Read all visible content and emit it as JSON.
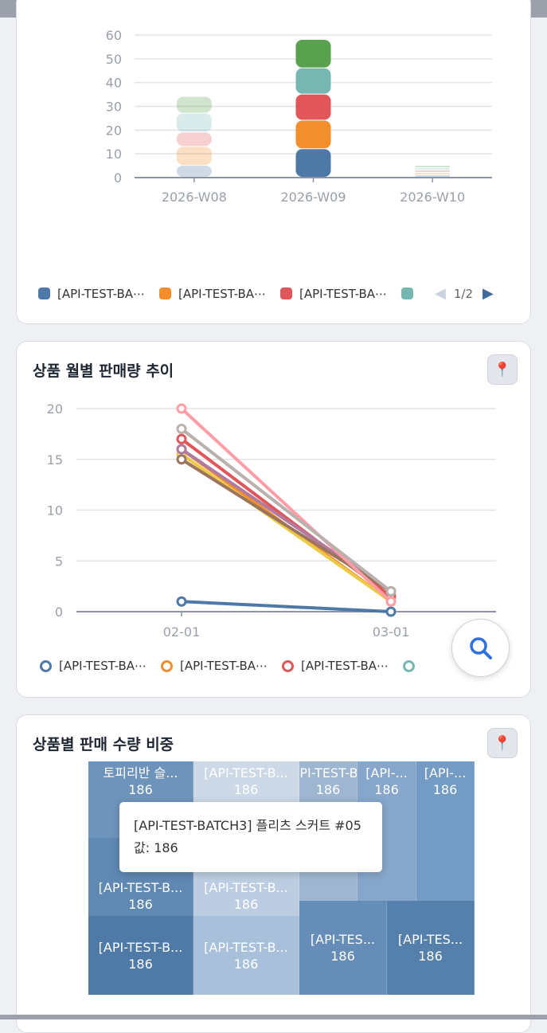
{
  "bar_card": {
    "legend": [
      {
        "label": "[API-TEST-BA⋯",
        "color": "#4e79a7"
      },
      {
        "label": "[API-TEST-BA⋯",
        "color": "#f28e2b"
      },
      {
        "label": "[API-TEST-BA⋯",
        "color": "#e15759"
      },
      {
        "label": "",
        "color": "#76b7b2"
      }
    ],
    "page": "1/2"
  },
  "line_card": {
    "title": "상품 월별 판매량 추이",
    "legend": [
      {
        "label": "[API-TEST-BA⋯",
        "color": "#4e79a7"
      },
      {
        "label": "[API-TEST-BA⋯",
        "color": "#f28e2b"
      },
      {
        "label": "[API-TEST-BA⋯",
        "color": "#e15759"
      },
      {
        "label": "",
        "color": "#76b7b2"
      }
    ]
  },
  "treemap_card": {
    "title": "상품별 판매 수량 비중",
    "cells": [
      {
        "label": "토피리반 슬...",
        "value": "186",
        "color": "#6f94bb"
      },
      {
        "label": "[API-TEST-B...",
        "value": "186",
        "color": "#5f88b3"
      },
      {
        "label": "[API-TEST-B...",
        "value": "186",
        "color": "#4f7aa8"
      },
      {
        "label": "[API-TEST-B...",
        "value": "186",
        "color": "#cdd9e7"
      },
      {
        "label": "[API-TEST-B...",
        "value": "186",
        "color": "#bccde2"
      },
      {
        "label": "[API-TEST-B...",
        "value": "186",
        "color": "#a9c0db"
      },
      {
        "label": "[API-TEST-B...",
        "value": "186",
        "color": "#9fb6d1"
      },
      {
        "label": "[API-...",
        "value": "186",
        "color": "#86a7cb"
      },
      {
        "label": "[API-...",
        "value": "186",
        "color": "#739bc3"
      },
      {
        "label": "[API-TES...",
        "value": "186",
        "color": "#668db7"
      },
      {
        "label": "[API-TES...",
        "value": "186",
        "color": "#5680ac"
      }
    ],
    "tooltip": {
      "name": "[API-TEST-BATCH3] 플리츠 스커트 #05",
      "value": "값: 186"
    }
  },
  "chart_data": [
    {
      "type": "bar",
      "stacked": true,
      "categories": [
        "2026-W08",
        "2026-W09",
        "2026-W10"
      ],
      "ylim": [
        0,
        60
      ],
      "yticks": [
        0,
        10,
        20,
        30,
        40,
        50,
        60
      ],
      "grid": true,
      "legend": "bottom",
      "series": [
        {
          "color": "#4e79a7",
          "values": [
            5,
            12,
            1
          ]
        },
        {
          "color": "#f28e2b",
          "values": [
            8,
            12,
            1
          ]
        },
        {
          "color": "#e15759",
          "values": [
            6,
            11,
            1
          ]
        },
        {
          "color": "#76b7b2",
          "values": [
            8,
            11,
            1
          ]
        },
        {
          "color": "#59a14f",
          "values": [
            7,
            12,
            1
          ]
        }
      ],
      "faded_categories": [
        "2026-W08",
        "2026-W10"
      ]
    },
    {
      "type": "line",
      "categories": [
        "02-01",
        "03-01"
      ],
      "ylim": [
        0,
        20
      ],
      "yticks": [
        0,
        5,
        10,
        15,
        20
      ],
      "grid": true,
      "legend": "bottom",
      "series": [
        {
          "color": "#4e79a7",
          "values": [
            1,
            0
          ]
        },
        {
          "color": "#f28e2b",
          "values": [
            16,
            1
          ]
        },
        {
          "color": "#edc948",
          "values": [
            15.5,
            1
          ]
        },
        {
          "color": "#e15759",
          "values": [
            17,
            1.5
          ]
        },
        {
          "color": "#b07aa1",
          "values": [
            16,
            2
          ]
        },
        {
          "color": "#9c755f",
          "values": [
            15,
            2
          ]
        },
        {
          "color": "#ff9da7",
          "values": [
            20,
            1
          ]
        },
        {
          "color": "#bab0ac",
          "values": [
            18,
            2
          ]
        }
      ]
    },
    {
      "type": "treemap",
      "values": [
        186,
        186,
        186,
        186,
        186,
        186,
        186,
        186,
        186,
        186,
        186
      ]
    }
  ]
}
